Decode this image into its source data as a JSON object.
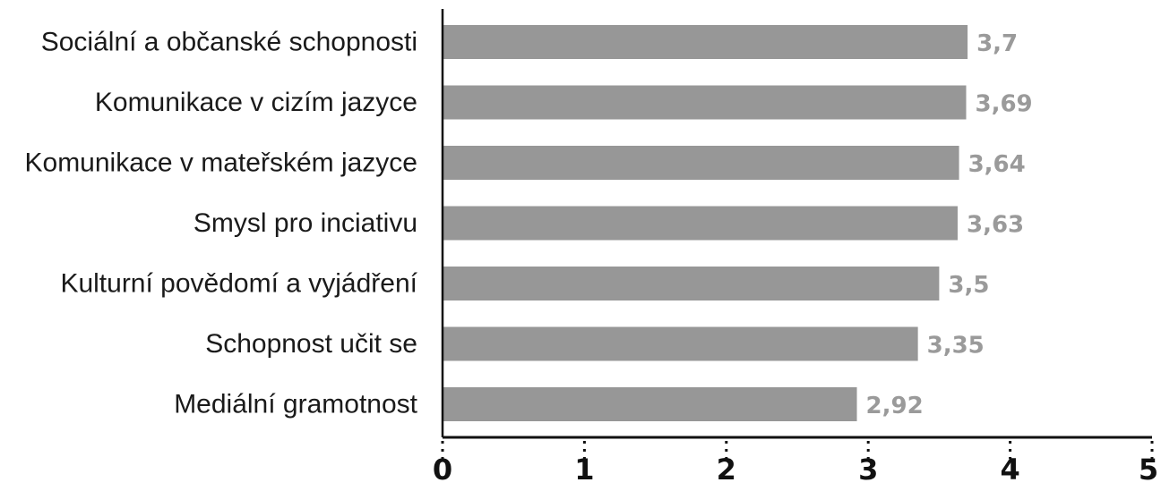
{
  "chart_data": {
    "type": "bar",
    "orientation": "horizontal",
    "categories": [
      "Sociální a občanské schopnosti",
      "Komunikace v cizím jazyce",
      "Komunikace v mateřském jazyce",
      "Smysl pro inciativu",
      "Kulturní povědomí a vyjádření",
      "Schopnost učit se",
      "Mediální gramotnost"
    ],
    "values": [
      3.7,
      3.69,
      3.64,
      3.63,
      3.5,
      3.35,
      2.92
    ],
    "value_labels": [
      "3,7",
      "3,69",
      "3,64",
      "3,63",
      "3,5",
      "3,35",
      "2,92"
    ],
    "xlim": [
      0,
      5
    ],
    "x_ticks": [
      0,
      1,
      2,
      3,
      4,
      5
    ],
    "x_tick_labels": [
      "0",
      "1",
      "2",
      "3",
      "4",
      "5"
    ],
    "grid": false,
    "colors": {
      "bar": "#979797",
      "value_label": "#9a9a9a",
      "axis": "#111111"
    }
  }
}
